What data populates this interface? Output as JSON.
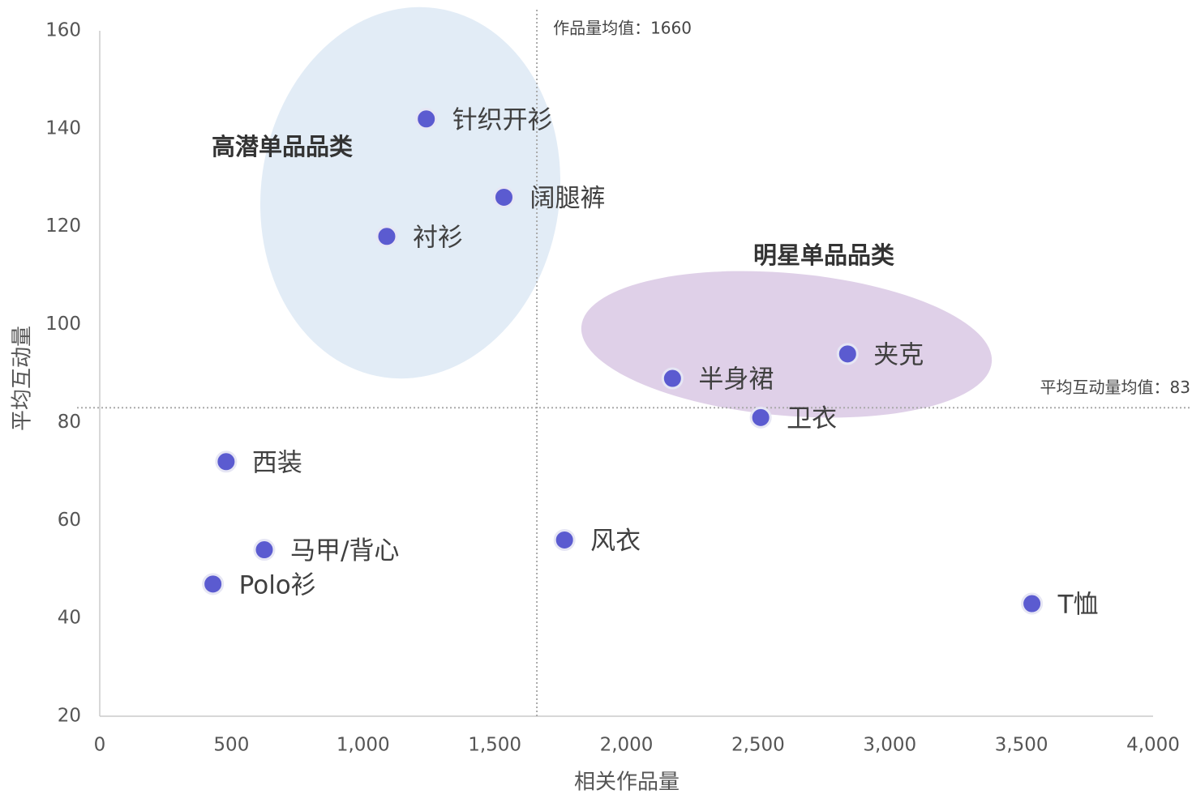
{
  "chart_data": {
    "type": "scatter",
    "xlabel": "相关作品量",
    "ylabel": "平均互动量",
    "labels": [
      "针织开衫",
      "阔腿裤",
      "衬衫",
      "夹克",
      "半身裙",
      "卫衣",
      "西装",
      "马甲/背心",
      "Polo衫",
      "风衣",
      "T恤"
    ],
    "x": [
      1240,
      1535,
      1090,
      2840,
      2175,
      2510,
      480,
      625,
      430,
      1765,
      3540
    ],
    "values": [
      142,
      126,
      118,
      94,
      89,
      81,
      72,
      54,
      47,
      56,
      43
    ],
    "color": "#5b5bd0",
    "xlim": [
      0,
      4000
    ],
    "xticks": [
      0,
      500,
      {
        "value": 1000,
        "label": "1,000"
      },
      {
        "value": 1500,
        "label": "1,500"
      },
      {
        "value": 2000,
        "label": "2,000"
      },
      {
        "value": 2500,
        "label": "2,500"
      },
      {
        "value": 3000,
        "label": "3,000"
      },
      {
        "value": 3500,
        "label": "3,500"
      },
      {
        "value": 4000,
        "label": "4,000"
      }
    ],
    "ylim": [
      20,
      160
    ],
    "yticks": [
      20,
      40,
      60,
      80,
      100,
      120,
      140,
      160
    ],
    "x_reference": {
      "value": 1660,
      "label": "作品量均值：1660"
    },
    "y_reference": {
      "value": 83,
      "label": "平均互动量均值：83"
    },
    "annotations": [
      "高潜单品品类",
      "明星单品品类"
    ]
  }
}
